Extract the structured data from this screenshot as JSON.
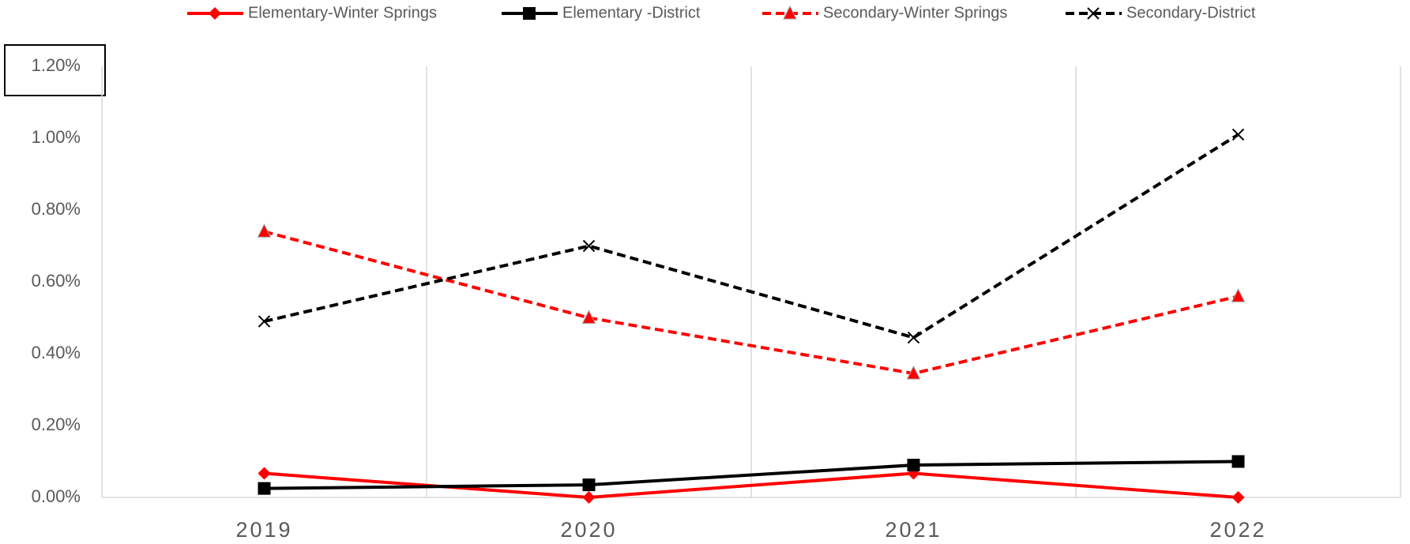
{
  "chart_data": {
    "type": "line",
    "categories": [
      "2019",
      "2020",
      "2021",
      "2022"
    ],
    "series": [
      {
        "name": "Elementary-Winter Springs",
        "color": "#ff0000",
        "marker": "diamond",
        "dashed": false,
        "values": [
          0.067,
          0,
          0.067,
          0
        ]
      },
      {
        "name": "Elementary -District",
        "color": "#000000",
        "marker": "square",
        "dashed": false,
        "values": [
          0.025,
          0.035,
          0.09,
          0.1
        ]
      },
      {
        "name": "Secondary-Winter Springs",
        "color": "#ff0000",
        "marker": "triangle",
        "dashed": true,
        "values": [
          0.74,
          0.5,
          0.345,
          0.56
        ]
      },
      {
        "name": "Secondary-District",
        "color": "#000000",
        "marker": "x",
        "dashed": true,
        "values": [
          0.49,
          0.7,
          0.445,
          1.01
        ]
      }
    ],
    "ylim": [
      0,
      1.2
    ],
    "yticks": [
      {
        "value": 0,
        "label": "0.00%"
      },
      {
        "value": 0.2,
        "label": "0.20%"
      },
      {
        "value": 0.4,
        "label": "0.40%"
      },
      {
        "value": 0.6,
        "label": "0.60%"
      },
      {
        "value": 0.8,
        "label": "0.80%"
      },
      {
        "value": 1.0,
        "label": "1.00%"
      },
      {
        "value": 1.2,
        "label": "1.20%"
      }
    ],
    "grid": true,
    "legend": "top"
  }
}
